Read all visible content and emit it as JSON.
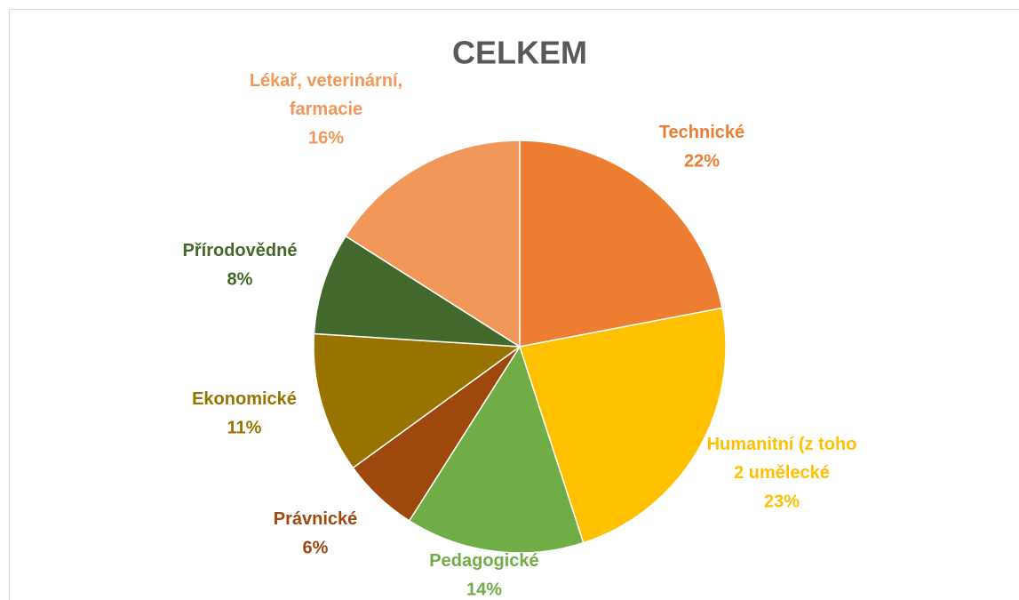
{
  "chart_data": {
    "type": "pie",
    "title": "CELKEM",
    "categories": [
      "Technické",
      "Humanitní (z toho 2 umělecké",
      "Pedagogické",
      "Právnické",
      "Ekonomické",
      "Přírodovědné",
      "Lékař, veterinární, farmacie"
    ],
    "values": [
      22,
      23,
      14,
      6,
      11,
      8,
      16
    ],
    "value_labels": [
      "22%",
      "23%",
      "14%",
      "6%",
      "11%",
      "8%",
      "16%"
    ],
    "colors": [
      "#ED7D31",
      "#FFC000",
      "#70AD47",
      "#9E480E",
      "#997300",
      "#43682B",
      "#F1975A"
    ]
  }
}
